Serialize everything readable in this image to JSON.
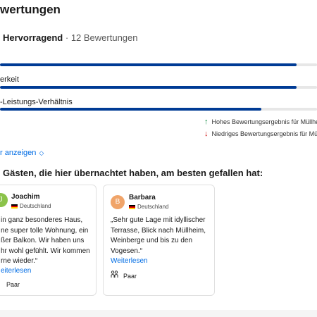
{
  "heading": "wertungen",
  "summary": {
    "rating_word": "Hervorragend",
    "separator": " · ",
    "count": "12 Bewertungen"
  },
  "categories": [
    {
      "label": "",
      "value": 0.935
    },
    {
      "label": "erkeit",
      "value": 0.935
    },
    {
      "label": "-Leistungs-Verhältnis",
      "value": 0.825
    }
  ],
  "legend": {
    "high": "Hohes Bewertungsergebnis für Müllhei",
    "low": "Niedriges Bewertungsergebnis für Müll",
    "up_icon": "arrow-up-icon",
    "down_icon": "arrow-down-icon"
  },
  "show_more": "r anzeigen",
  "section_title": "Gästen, die hier übernachtet haben, am besten gefallen hat:",
  "reviews": [
    {
      "avatar_letter": "J",
      "avatar_color": "#8bc34a",
      "name": "Joachim",
      "country": "Deutschland",
      "quote_lines": [
        "in ganz besonderes Haus,",
        "ne super tolle Wohnung, ein",
        "ßer Balkon. Wir haben uns",
        "hr wohl gefühlt. Wir kommen",
        "rne wieder.“"
      ],
      "read_more": "eiterlesen",
      "traveler_type": "Paar"
    },
    {
      "avatar_letter": "B",
      "avatar_color": "#f0a469",
      "name": "Barbara",
      "country": "Deutschland",
      "quote_lines": [
        "„Sehr gute Lage mit idyllischer",
        "Terrasse, Blick nach Müllheim,",
        "Weinberge und bis zu den",
        "Vogesen.“"
      ],
      "read_more": "Weiterlesen",
      "traveler_type": "Paar"
    }
  ],
  "colors": {
    "bar": "#003b95",
    "link": "#006ce4",
    "up": "#008234",
    "down": "#cc0000"
  }
}
